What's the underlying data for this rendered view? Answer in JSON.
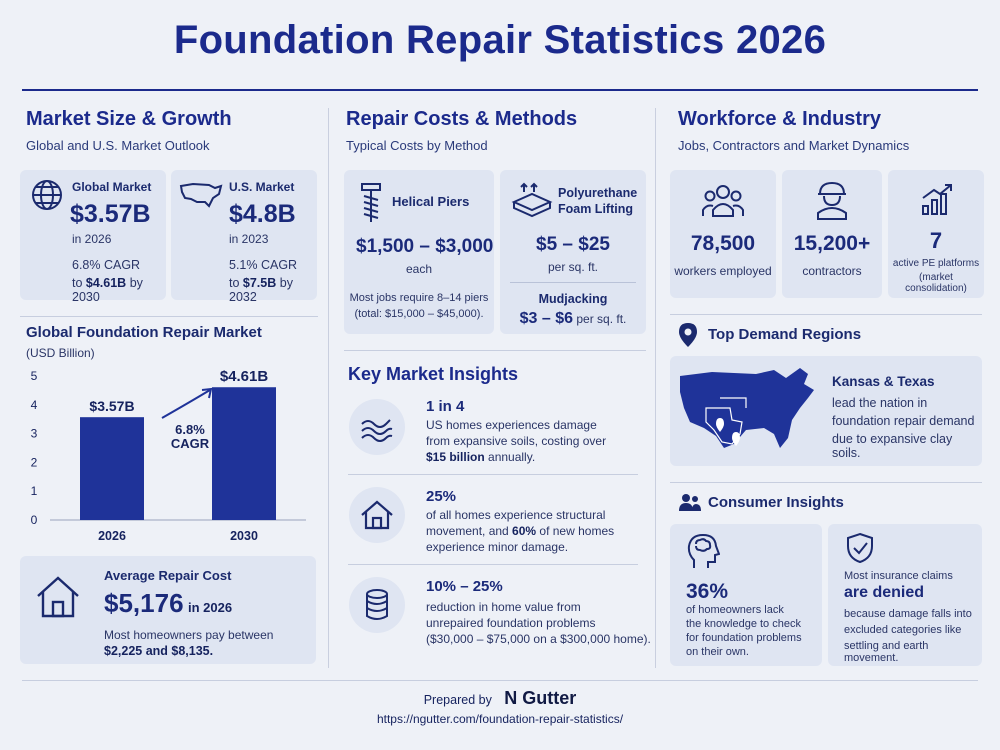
{
  "title": "Foundation Repair Statistics 2026",
  "market": {
    "title": "Market Size & Growth",
    "subtitle": "Global and U.S. Market Outlook",
    "global": {
      "label": "Global Market",
      "value": "$3.57B",
      "year": "in 2026",
      "cagr": "6.8% CAGR",
      "to_prefix": "to ",
      "to_value": "$4.61B",
      "to_suffix": " by 2030"
    },
    "us": {
      "label": "U.S. Market",
      "value": "$4.8B",
      "year": "in 2023",
      "cagr": "5.1% CAGR",
      "to_prefix": "to ",
      "to_value": "$7.5B",
      "to_suffix": " by 2032"
    }
  },
  "chart_data": {
    "type": "bar",
    "title": "Global Foundation Repair Market",
    "subtitle": "(USD Billion)",
    "categories": [
      "2026",
      "2030"
    ],
    "values": [
      3.57,
      4.61
    ],
    "data_labels": [
      "$3.57B",
      "$4.61B"
    ],
    "annotation": [
      "6.8%",
      "CAGR"
    ],
    "yticks": [
      "0",
      "1",
      "2",
      "3",
      "4",
      "5"
    ],
    "ylim": [
      0,
      5
    ],
    "bar_color": "#1f3399"
  },
  "avg_cost": {
    "label": "Average Repair Cost",
    "value": "$5,176",
    "year": "in 2026",
    "line1": "Most homeowners pay between",
    "line2": "$2,225 and $8,135."
  },
  "repair": {
    "title": "Repair Costs & Methods",
    "subtitle": "Typical Costs by Method",
    "helical": {
      "label": "Helical Piers",
      "cost": "$1,500 – $3,000",
      "unit": "each",
      "note1": "Most jobs require 8–14 piers",
      "note2": "(total: $15,000 – $45,000)."
    },
    "poly": {
      "label1": "Polyurethane",
      "label2": "Foam Lifting",
      "cost": "$5 – $25",
      "unit": "per sq. ft."
    },
    "mud": {
      "label": "Mudjacking",
      "cost": "$3 – $6",
      "unit": " per sq. ft."
    }
  },
  "insights": {
    "title": "Key Market Insights",
    "items": [
      {
        "head": "1 in 4",
        "l1": "US homes experiences damage",
        "l2": "from expansive soils, costing over",
        "l3b": "$15 billion",
        "l3": " annually."
      },
      {
        "head": "25%",
        "l1": "of all homes experience structural",
        "l2a": "movement, and ",
        "l2b": "60%",
        "l2c": " of new homes",
        "l3": "experience minor damage."
      },
      {
        "head": "10% – 25%",
        "l1": "reduction in home value from",
        "l2": "unrepaired foundation problems",
        "l3": "($30,000 – $75,000 on a $300,000 home)."
      }
    ]
  },
  "workforce": {
    "title": "Workforce & Industry",
    "subtitle": "Jobs, Contractors and Market Dynamics",
    "stats": [
      {
        "value": "78,500",
        "label": "workers employed"
      },
      {
        "value": "15,200+",
        "label": "contractors"
      },
      {
        "value": "7",
        "label1": "active PE platforms",
        "label2": "(market consolidation)"
      }
    ]
  },
  "regions": {
    "title": "Top Demand Regions",
    "head": "Kansas & Texas",
    "l1": "lead the nation in",
    "l2": "foundation repair demand",
    "l3": "due to expansive clay soils."
  },
  "consumer": {
    "title": "Consumer Insights",
    "left": {
      "value": "36%",
      "l1": "of homeowners lack",
      "l2": "the knowledge to check",
      "l3": "for foundation problems",
      "l4": "on their own."
    },
    "right": {
      "l1": "Most insurance claims",
      "head": "are denied",
      "l2": "because damage falls into",
      "l3": "excluded categories like",
      "l4": "settling and earth movement."
    }
  },
  "footer": {
    "prepared": "Prepared by",
    "brand": "N Gutter",
    "url": "https://ngutter.com/foundation-repair-statistics/"
  }
}
